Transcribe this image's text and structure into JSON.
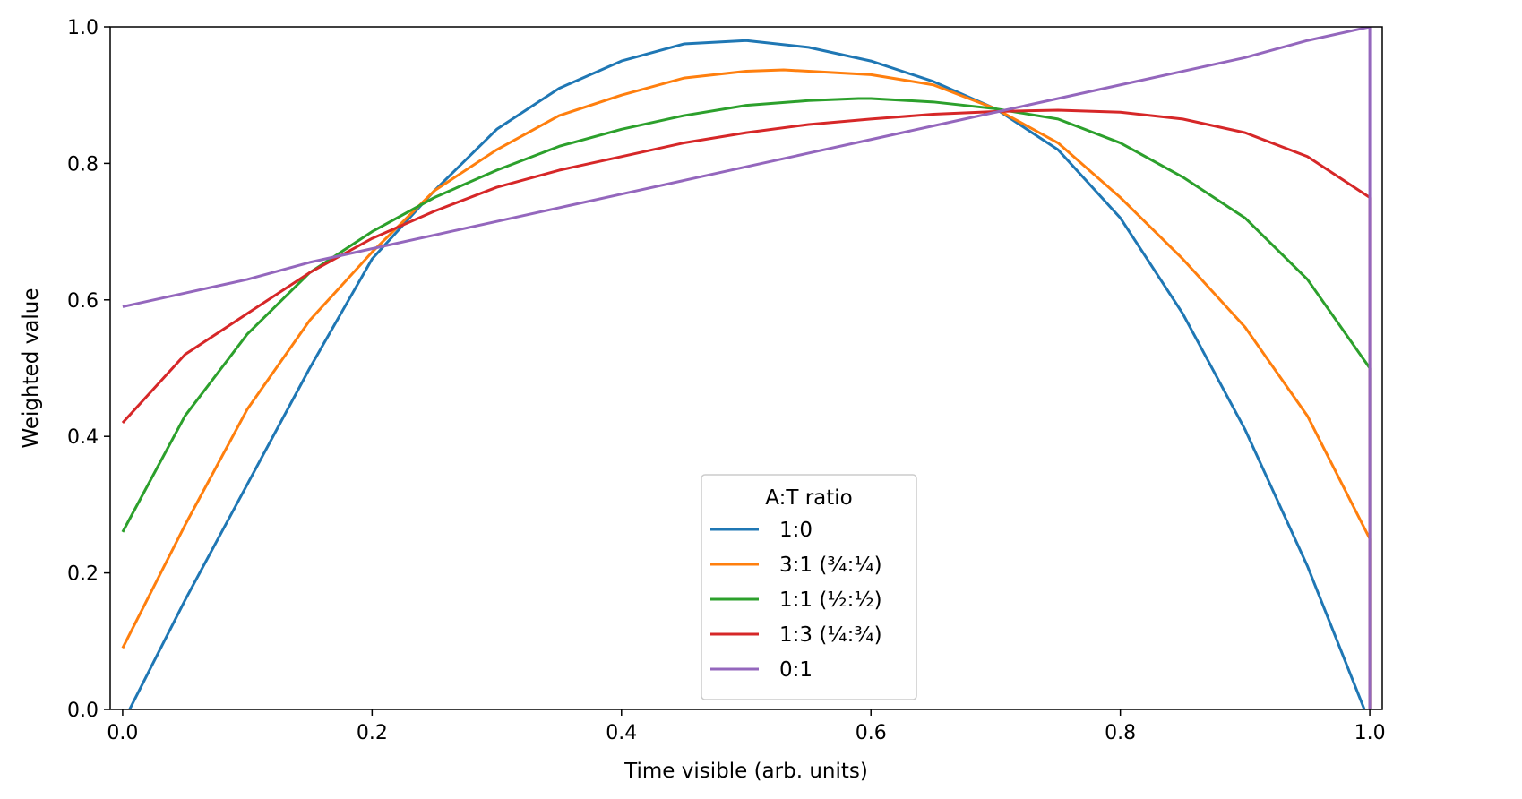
{
  "chart_data": {
    "type": "line",
    "title": "",
    "xlabel": "Time visible (arb. units)",
    "ylabel": "Weighted value",
    "xlim": [
      -0.01,
      1.01
    ],
    "ylim": [
      0.0,
      1.0
    ],
    "xticks": [
      0.0,
      0.2,
      0.4,
      0.6,
      0.8,
      1.0
    ],
    "xtick_labels": [
      "0.0",
      "0.2",
      "0.4",
      "0.6",
      "0.8",
      "1.0"
    ],
    "yticks": [
      0.0,
      0.2,
      0.4,
      0.6,
      0.8,
      1.0
    ],
    "ytick_labels": [
      "0.0",
      "0.2",
      "0.4",
      "0.6",
      "0.8",
      "1.0"
    ],
    "grid": false,
    "legend": {
      "title": "A:T ratio",
      "placement": "lower-center"
    },
    "series": [
      {
        "name": "1:0",
        "color": "#1f77b4",
        "x": [
          0.0,
          0.05,
          0.1,
          0.15,
          0.2,
          0.25,
          0.3,
          0.35,
          0.4,
          0.45,
          0.5,
          0.55,
          0.6,
          0.65,
          0.7,
          0.75,
          0.8,
          0.85,
          0.9,
          0.95,
          1.0
        ],
        "y": [
          -0.02,
          0.16,
          0.33,
          0.5,
          0.66,
          0.76,
          0.85,
          0.91,
          0.95,
          0.975,
          0.98,
          0.97,
          0.95,
          0.92,
          0.88,
          0.82,
          0.72,
          0.58,
          0.41,
          0.21,
          -0.02
        ]
      },
      {
        "name": "3:1 (¾:¼)",
        "color": "#ff7f0e",
        "x": [
          0.0,
          0.05,
          0.1,
          0.15,
          0.2,
          0.25,
          0.3,
          0.35,
          0.4,
          0.45,
          0.5,
          0.53,
          0.55,
          0.6,
          0.65,
          0.7,
          0.75,
          0.8,
          0.85,
          0.9,
          0.95,
          1.0,
          1.0
        ],
        "y": [
          0.09,
          0.27,
          0.44,
          0.57,
          0.67,
          0.76,
          0.82,
          0.87,
          0.9,
          0.925,
          0.935,
          0.937,
          0.935,
          0.93,
          0.915,
          0.88,
          0.83,
          0.75,
          0.66,
          0.56,
          0.43,
          0.25,
          0.0
        ]
      },
      {
        "name": "1:1 (½:½)",
        "color": "#2ca02c",
        "x": [
          0.0,
          0.05,
          0.1,
          0.15,
          0.2,
          0.25,
          0.3,
          0.35,
          0.4,
          0.45,
          0.5,
          0.55,
          0.59,
          0.6,
          0.65,
          0.7,
          0.75,
          0.8,
          0.85,
          0.9,
          0.95,
          1.0,
          1.0
        ],
        "y": [
          0.26,
          0.43,
          0.55,
          0.64,
          0.7,
          0.75,
          0.79,
          0.825,
          0.85,
          0.87,
          0.885,
          0.892,
          0.895,
          0.895,
          0.89,
          0.88,
          0.865,
          0.83,
          0.78,
          0.72,
          0.63,
          0.5,
          0.0
        ]
      },
      {
        "name": "1:3 (¼:¾)",
        "color": "#d62728",
        "x": [
          0.0,
          0.05,
          0.1,
          0.15,
          0.2,
          0.25,
          0.3,
          0.35,
          0.4,
          0.45,
          0.5,
          0.55,
          0.6,
          0.65,
          0.7,
          0.75,
          0.8,
          0.85,
          0.9,
          0.95,
          1.0,
          1.0
        ],
        "y": [
          0.42,
          0.52,
          0.58,
          0.64,
          0.69,
          0.73,
          0.765,
          0.79,
          0.81,
          0.83,
          0.845,
          0.857,
          0.865,
          0.872,
          0.876,
          0.878,
          0.875,
          0.865,
          0.845,
          0.81,
          0.75,
          0.0
        ]
      },
      {
        "name": "0:1",
        "color": "#9467bd",
        "x": [
          0.0,
          0.05,
          0.1,
          0.15,
          0.2,
          0.25,
          0.3,
          0.35,
          0.4,
          0.45,
          0.5,
          0.55,
          0.6,
          0.65,
          0.7,
          0.75,
          0.8,
          0.85,
          0.9,
          0.95,
          1.0,
          1.0
        ],
        "y": [
          0.59,
          0.61,
          0.63,
          0.655,
          0.675,
          0.695,
          0.715,
          0.735,
          0.755,
          0.775,
          0.795,
          0.815,
          0.835,
          0.855,
          0.875,
          0.895,
          0.915,
          0.935,
          0.955,
          0.98,
          1.0,
          0.0
        ]
      }
    ]
  }
}
